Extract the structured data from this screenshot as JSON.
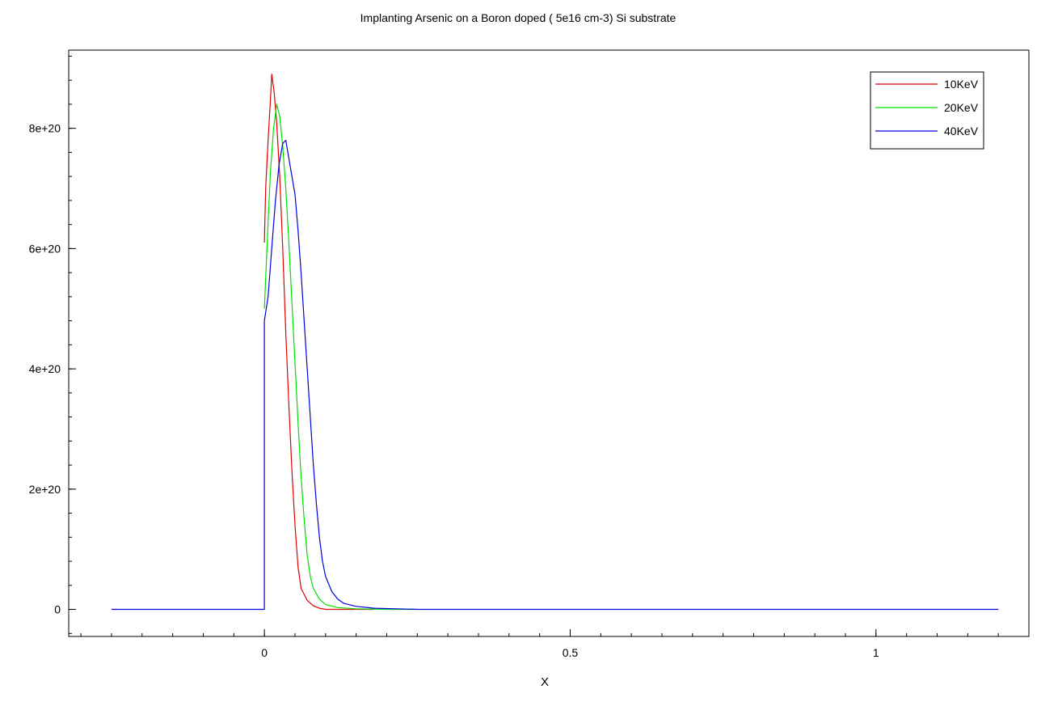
{
  "chart_data": {
    "type": "line",
    "title": "Implanting Arsenic on a Boron doped ( 5e16 cm-3) Si substrate",
    "xlabel": "X",
    "ylabel": "",
    "xlim": [
      -0.32,
      1.25
    ],
    "ylim": [
      -4.5e+19,
      9.3e+20
    ],
    "x_ticks": [
      0,
      0.5,
      1
    ],
    "x_tick_labels": [
      "0",
      "0.5",
      "1"
    ],
    "y_ticks": [
      0,
      2e+20,
      4e+20,
      6e+20,
      8e+20
    ],
    "y_tick_labels": [
      "0",
      "2e+20",
      "4e+20",
      "6e+20",
      "8e+20"
    ],
    "grid": false,
    "legend_position": "top-right",
    "series": [
      {
        "name": "10KeV",
        "color": "#e00000",
        "points": [
          [
            0,
            6.1e+20
          ],
          [
            0.002,
            7e+20
          ],
          [
            0.006,
            7.8e+20
          ],
          [
            0.01,
            8.5e+20
          ],
          [
            0.012,
            8.9e+20
          ],
          [
            0.016,
            8.6e+20
          ],
          [
            0.02,
            8.1e+20
          ],
          [
            0.025,
            7.2e+20
          ],
          [
            0.03,
            6e+20
          ],
          [
            0.035,
            4.6e+20
          ],
          [
            0.04,
            3.4e+20
          ],
          [
            0.045,
            2.3e+20
          ],
          [
            0.05,
            1.4e+20
          ],
          [
            0.055,
            7e+19
          ],
          [
            0.06,
            3.5e+19
          ],
          [
            0.07,
            1.5e+19
          ],
          [
            0.08,
            6e+18
          ],
          [
            0.09,
            2e+18
          ],
          [
            0.1,
            0.0
          ],
          [
            0.18,
            0.0
          ]
        ]
      },
      {
        "name": "20KeV",
        "color": "#00e000",
        "points": [
          [
            0,
            5e+20
          ],
          [
            0.005,
            6.2e+20
          ],
          [
            0.01,
            7.3e+20
          ],
          [
            0.015,
            8e+20
          ],
          [
            0.02,
            8.4e+20
          ],
          [
            0.025,
            8.2e+20
          ],
          [
            0.03,
            7.7e+20
          ],
          [
            0.035,
            7e+20
          ],
          [
            0.04,
            6.1e+20
          ],
          [
            0.045,
            5.1e+20
          ],
          [
            0.05,
            4.1e+20
          ],
          [
            0.055,
            3.1e+20
          ],
          [
            0.06,
            2.2e+20
          ],
          [
            0.065,
            1.5e+20
          ],
          [
            0.07,
            9e+19
          ],
          [
            0.075,
            5.5e+19
          ],
          [
            0.08,
            3.5e+19
          ],
          [
            0.09,
            1.7e+19
          ],
          [
            0.1,
            8e+18
          ],
          [
            0.12,
            3e+18
          ],
          [
            0.15,
            1e+18
          ],
          [
            0.2,
            0.0
          ],
          [
            0.25,
            0.0
          ]
        ]
      },
      {
        "name": "40KeV",
        "color": "#0000e0",
        "points": [
          [
            -0.25,
            0.0
          ],
          [
            0.0,
            0.0
          ],
          [
            0.0,
            4.8e+20
          ],
          [
            0.006,
            5.2e+20
          ],
          [
            0.012,
            6e+20
          ],
          [
            0.018,
            6.8e+20
          ],
          [
            0.024,
            7.4e+20
          ],
          [
            0.03,
            7.75e+20
          ],
          [
            0.035,
            7.8e+20
          ],
          [
            0.04,
            7.5e+20
          ],
          [
            0.045,
            7.2e+20
          ],
          [
            0.05,
            6.9e+20
          ],
          [
            0.055,
            6.3e+20
          ],
          [
            0.06,
            5.6e+20
          ],
          [
            0.065,
            4.8e+20
          ],
          [
            0.07,
            4e+20
          ],
          [
            0.075,
            3.2e+20
          ],
          [
            0.08,
            2.4e+20
          ],
          [
            0.085,
            1.75e+20
          ],
          [
            0.09,
            1.2e+20
          ],
          [
            0.095,
            8e+19
          ],
          [
            0.1,
            5.5e+19
          ],
          [
            0.11,
            3e+19
          ],
          [
            0.12,
            1.7e+19
          ],
          [
            0.13,
            1e+19
          ],
          [
            0.15,
            5e+18
          ],
          [
            0.18,
            2e+18
          ],
          [
            0.25,
            0.0
          ],
          [
            1.2,
            0.0
          ]
        ]
      }
    ]
  }
}
